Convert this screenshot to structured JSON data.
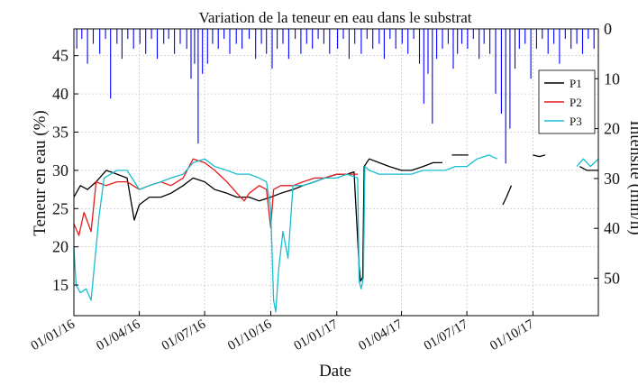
{
  "chart_data": {
    "type": "line",
    "title": "Variation de la teneur en eau dans le substrat",
    "xlabel": "Date",
    "ylabel": "Teneur en eau (%)",
    "ylabel_right": "Intensite (mm/h)",
    "grid": true,
    "legend_position": "top-right",
    "xlim": [
      "2016-01-01",
      "2017-12-31"
    ],
    "ylim": [
      11,
      48.5
    ],
    "ylim_right": [
      0,
      57.5
    ],
    "right_axis_inverted": true,
    "x_ticks": [
      "01/01/16",
      "01/04/16",
      "01/07/16",
      "01/10/16",
      "01/01/17",
      "01/04/17",
      "01/07/17",
      "01/10/17"
    ],
    "x_tick_dates": [
      "2016-01-01",
      "2016-04-01",
      "2016-07-01",
      "2016-10-01",
      "2017-01-01",
      "2017-04-01",
      "2017-07-01",
      "2017-10-01"
    ],
    "y_ticks": [
      15,
      20,
      25,
      30,
      35,
      40,
      45
    ],
    "y_ticks_right": [
      0,
      10,
      20,
      30,
      40,
      50
    ],
    "series": [
      {
        "name": "P1",
        "color": "#000000",
        "points": [
          [
            "2016-01-01",
            26.5
          ],
          [
            "2016-01-10",
            28.0
          ],
          [
            "2016-01-20",
            27.5
          ],
          [
            "2016-02-01",
            28.5
          ],
          [
            "2016-02-15",
            30.0
          ],
          [
            "2016-03-01",
            29.5
          ],
          [
            "2016-03-15",
            29.0
          ],
          [
            "2016-03-25",
            23.5
          ],
          [
            "2016-04-01",
            25.5
          ],
          [
            "2016-04-15",
            26.5
          ],
          [
            "2016-05-01",
            26.5
          ],
          [
            "2016-05-15",
            27.0
          ],
          [
            "2016-06-01",
            28.0
          ],
          [
            "2016-06-15",
            29.0
          ],
          [
            "2016-07-01",
            28.5
          ],
          [
            "2016-07-15",
            27.5
          ],
          [
            "2016-08-01",
            27.0
          ],
          [
            "2016-08-15",
            26.5
          ],
          [
            "2016-09-01",
            26.5
          ],
          [
            "2016-09-15",
            26.0
          ],
          [
            "2016-10-01",
            26.5
          ],
          [
            "2016-10-15",
            27.0
          ],
          [
            "2016-11-01",
            27.5
          ],
          [
            "2016-11-15",
            28.0
          ],
          [
            "2016-12-01",
            28.5
          ],
          [
            "2016-12-15",
            29.0
          ],
          [
            "2017-01-01",
            29.5
          ],
          [
            "2017-01-15",
            29.5
          ],
          [
            "2017-01-25",
            29.8
          ],
          [
            "2017-02-01",
            17.5
          ],
          [
            "2017-02-03",
            15.5
          ],
          [
            "2017-02-06",
            16.0
          ],
          [
            "2017-02-08",
            30.5
          ],
          [
            "2017-02-15",
            31.5
          ],
          [
            "2017-03-01",
            31.0
          ],
          [
            "2017-03-15",
            30.5
          ],
          [
            "2017-04-01",
            30.0
          ],
          [
            "2017-04-15",
            30.0
          ],
          [
            "2017-05-01",
            30.5
          ],
          [
            "2017-05-15",
            31.0
          ],
          [
            "2017-05-28",
            31.0
          ],
          null,
          [
            "2017-06-10",
            32.0
          ],
          [
            "2017-06-25",
            32.0
          ],
          [
            "2017-07-03",
            32.0
          ],
          null,
          [
            "2017-08-20",
            25.5
          ],
          [
            "2017-08-25",
            26.5
          ],
          [
            "2017-09-01",
            28.0
          ],
          null,
          [
            "2017-10-01",
            32.0
          ],
          [
            "2017-10-10",
            31.8
          ],
          [
            "2017-10-18",
            32.0
          ],
          null,
          [
            "2017-12-05",
            30.5
          ],
          [
            "2017-12-15",
            30.0
          ],
          [
            "2017-12-31",
            30.0
          ]
        ]
      },
      {
        "name": "P2",
        "color": "#e41a1c",
        "points": [
          [
            "2016-01-01",
            23.0
          ],
          [
            "2016-01-08",
            21.5
          ],
          [
            "2016-01-15",
            24.5
          ],
          [
            "2016-01-25",
            22.0
          ],
          [
            "2016-02-01",
            28.5
          ],
          [
            "2016-02-15",
            28.0
          ],
          [
            "2016-03-01",
            28.5
          ],
          [
            "2016-03-15",
            28.5
          ],
          [
            "2016-04-01",
            27.5
          ],
          [
            "2016-04-15",
            28.0
          ],
          [
            "2016-05-01",
            28.5
          ],
          [
            "2016-05-15",
            28.0
          ],
          [
            "2016-06-01",
            29.0
          ],
          [
            "2016-06-15",
            31.5
          ],
          [
            "2016-07-01",
            31.0
          ],
          [
            "2016-07-15",
            30.0
          ],
          [
            "2016-08-01",
            28.5
          ],
          [
            "2016-08-15",
            27.0
          ],
          [
            "2016-08-25",
            26.0
          ],
          [
            "2016-09-01",
            27.0
          ],
          [
            "2016-09-15",
            28.0
          ],
          [
            "2016-09-25",
            27.5
          ],
          [
            "2016-10-01",
            22.5
          ],
          [
            "2016-10-05",
            27.5
          ],
          [
            "2016-10-15",
            28.0
          ],
          [
            "2016-11-01",
            28.0
          ],
          [
            "2016-11-15",
            28.5
          ],
          [
            "2016-12-01",
            29.0
          ],
          [
            "2016-12-15",
            29.0
          ],
          [
            "2017-01-01",
            29.5
          ],
          [
            "2017-01-15",
            29.5
          ],
          [
            "2017-01-30",
            29.5
          ]
        ]
      },
      {
        "name": "P3",
        "color": "#17becf",
        "points": [
          [
            "2016-01-01",
            20.0
          ],
          [
            "2016-01-04",
            15.0
          ],
          [
            "2016-01-10",
            14.0
          ],
          [
            "2016-01-18",
            14.5
          ],
          [
            "2016-01-25",
            13.0
          ],
          [
            "2016-02-01",
            20.0
          ],
          [
            "2016-02-05",
            24.0
          ],
          [
            "2016-02-12",
            29.0
          ],
          [
            "2016-03-01",
            30.0
          ],
          [
            "2016-03-15",
            30.0
          ],
          [
            "2016-04-01",
            27.5
          ],
          [
            "2016-04-15",
            28.0
          ],
          [
            "2016-05-01",
            28.5
          ],
          [
            "2016-05-15",
            29.0
          ],
          [
            "2016-06-01",
            29.5
          ],
          [
            "2016-06-15",
            31.0
          ],
          [
            "2016-07-01",
            31.5
          ],
          [
            "2016-07-15",
            30.5
          ],
          [
            "2016-08-01",
            30.0
          ],
          [
            "2016-08-15",
            29.5
          ],
          [
            "2016-09-01",
            29.5
          ],
          [
            "2016-09-15",
            29.0
          ],
          [
            "2016-09-25",
            28.5
          ],
          [
            "2016-10-01",
            25.0
          ],
          [
            "2016-10-05",
            13.0
          ],
          [
            "2016-10-08",
            11.5
          ],
          [
            "2016-10-12",
            17.0
          ],
          [
            "2016-10-18",
            22.0
          ],
          [
            "2016-10-25",
            18.5
          ],
          [
            "2016-11-01",
            28.0
          ],
          [
            "2016-11-15",
            28.0
          ],
          [
            "2016-12-01",
            28.5
          ],
          [
            "2016-12-15",
            29.0
          ],
          [
            "2017-01-01",
            29.0
          ],
          [
            "2017-01-15",
            29.5
          ],
          [
            "2017-01-30",
            29.0
          ],
          [
            "2017-02-01",
            15.5
          ],
          [
            "2017-02-04",
            14.5
          ],
          [
            "2017-02-07",
            16.0
          ],
          [
            "2017-02-09",
            30.5
          ],
          [
            "2017-02-15",
            30.0
          ],
          [
            "2017-03-01",
            29.5
          ],
          [
            "2017-03-15",
            29.5
          ],
          [
            "2017-04-01",
            29.5
          ],
          [
            "2017-04-15",
            29.5
          ],
          [
            "2017-05-01",
            30.0
          ],
          [
            "2017-05-15",
            30.0
          ],
          [
            "2017-06-01",
            30.0
          ],
          [
            "2017-06-15",
            30.5
          ],
          [
            "2017-07-01",
            30.5
          ],
          [
            "2017-07-15",
            31.5
          ],
          [
            "2017-08-01",
            32.0
          ],
          [
            "2017-08-12",
            31.5
          ],
          null,
          [
            "2017-12-01",
            30.5
          ],
          [
            "2017-12-10",
            31.5
          ],
          [
            "2017-12-20",
            30.5
          ],
          [
            "2017-12-31",
            31.5
          ]
        ]
      }
    ],
    "precipitation": {
      "name": "Intensite",
      "color": "#0000ff",
      "axis": "right",
      "events": [
        [
          "2016-01-05",
          4
        ],
        [
          "2016-01-12",
          2
        ],
        [
          "2016-01-20",
          7
        ],
        [
          "2016-01-28",
          3
        ],
        [
          "2016-02-06",
          5
        ],
        [
          "2016-02-14",
          2
        ],
        [
          "2016-02-21",
          14
        ],
        [
          "2016-03-01",
          3
        ],
        [
          "2016-03-08",
          6
        ],
        [
          "2016-03-16",
          2
        ],
        [
          "2016-03-24",
          4
        ],
        [
          "2016-04-02",
          3
        ],
        [
          "2016-04-10",
          5
        ],
        [
          "2016-04-18",
          2
        ],
        [
          "2016-04-26",
          6
        ],
        [
          "2016-05-05",
          3
        ],
        [
          "2016-05-12",
          2
        ],
        [
          "2016-05-20",
          5
        ],
        [
          "2016-05-28",
          3
        ],
        [
          "2016-06-06",
          4
        ],
        [
          "2016-06-12",
          10
        ],
        [
          "2016-06-17",
          7
        ],
        [
          "2016-06-22",
          23
        ],
        [
          "2016-06-28",
          9
        ],
        [
          "2016-07-05",
          7
        ],
        [
          "2016-07-12",
          3
        ],
        [
          "2016-07-20",
          4
        ],
        [
          "2016-07-28",
          2
        ],
        [
          "2016-08-05",
          5
        ],
        [
          "2016-08-14",
          3
        ],
        [
          "2016-08-22",
          4
        ],
        [
          "2016-09-01",
          2
        ],
        [
          "2016-09-10",
          6
        ],
        [
          "2016-09-18",
          3
        ],
        [
          "2016-09-25",
          5
        ],
        [
          "2016-10-03",
          8
        ],
        [
          "2016-10-10",
          4
        ],
        [
          "2016-10-18",
          3
        ],
        [
          "2016-10-26",
          6
        ],
        [
          "2016-11-04",
          2
        ],
        [
          "2016-11-12",
          5
        ],
        [
          "2016-11-20",
          3
        ],
        [
          "2016-11-28",
          4
        ],
        [
          "2016-12-06",
          2
        ],
        [
          "2016-12-14",
          3
        ],
        [
          "2016-12-22",
          5
        ],
        [
          "2017-01-02",
          4
        ],
        [
          "2017-01-10",
          2
        ],
        [
          "2017-01-18",
          6
        ],
        [
          "2017-01-26",
          3
        ],
        [
          "2017-02-04",
          5
        ],
        [
          "2017-02-12",
          2
        ],
        [
          "2017-02-20",
          4
        ],
        [
          "2017-03-01",
          3
        ],
        [
          "2017-03-08",
          6
        ],
        [
          "2017-03-16",
          2
        ],
        [
          "2017-03-24",
          4
        ],
        [
          "2017-04-02",
          3
        ],
        [
          "2017-04-10",
          5
        ],
        [
          "2017-04-18",
          2
        ],
        [
          "2017-04-26",
          7
        ],
        [
          "2017-05-02",
          15
        ],
        [
          "2017-05-08",
          9
        ],
        [
          "2017-05-14",
          19
        ],
        [
          "2017-05-20",
          6
        ],
        [
          "2017-05-28",
          4
        ],
        [
          "2017-06-05",
          3
        ],
        [
          "2017-06-12",
          8
        ],
        [
          "2017-06-18",
          5
        ],
        [
          "2017-06-24",
          3
        ],
        [
          "2017-07-02",
          4
        ],
        [
          "2017-07-10",
          2
        ],
        [
          "2017-07-18",
          6
        ],
        [
          "2017-07-25",
          3
        ],
        [
          "2017-08-02",
          5
        ],
        [
          "2017-08-10",
          13
        ],
        [
          "2017-08-18",
          17
        ],
        [
          "2017-08-24",
          27
        ],
        [
          "2017-08-30",
          20
        ],
        [
          "2017-09-06",
          8
        ],
        [
          "2017-09-12",
          4
        ],
        [
          "2017-09-20",
          3
        ],
        [
          "2017-09-28",
          10
        ],
        [
          "2017-10-06",
          4
        ],
        [
          "2017-10-14",
          2
        ],
        [
          "2017-10-22",
          5
        ],
        [
          "2017-10-30",
          3
        ],
        [
          "2017-11-07",
          7
        ],
        [
          "2017-11-15",
          2
        ],
        [
          "2017-11-23",
          4
        ],
        [
          "2017-12-01",
          3
        ],
        [
          "2017-12-09",
          5
        ],
        [
          "2017-12-17",
          2
        ],
        [
          "2017-12-25",
          4
        ]
      ]
    }
  }
}
